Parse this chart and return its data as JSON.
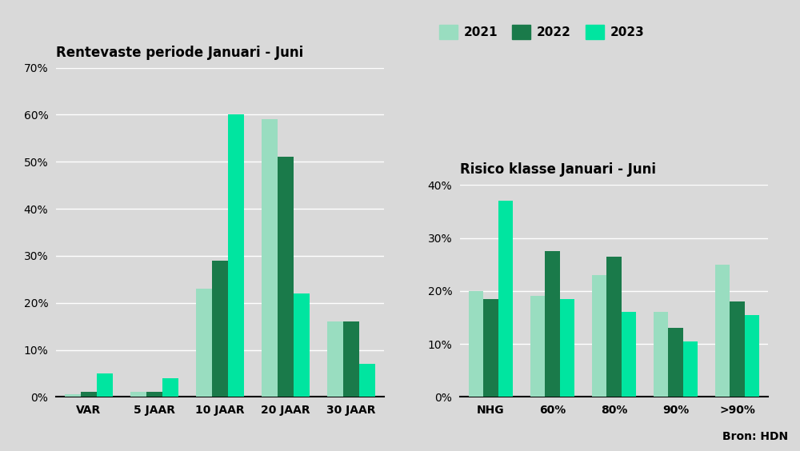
{
  "left_title": "Rentevaste periode Januari - Juni",
  "right_title": "Risico klasse Januari - Juni",
  "legend_labels": [
    "2021",
    "2022",
    "2023"
  ],
  "colors": [
    "#99ddc0",
    "#1a7a4a",
    "#00e5a0"
  ],
  "left_categories": [
    "VAR",
    "5 JAAR",
    "10 JAAR",
    "20 JAAR",
    "30 JAAR"
  ],
  "left_data": {
    "2021": [
      0.005,
      0.01,
      0.23,
      0.59,
      0.16
    ],
    "2022": [
      0.01,
      0.01,
      0.29,
      0.51,
      0.16
    ],
    "2023": [
      0.05,
      0.04,
      0.6,
      0.22,
      0.07
    ]
  },
  "right_categories": [
    "NHG",
    "60%",
    "80%",
    "90%",
    ">90%"
  ],
  "right_data": {
    "2021": [
      0.2,
      0.19,
      0.23,
      0.16,
      0.25
    ],
    "2022": [
      0.185,
      0.275,
      0.265,
      0.13,
      0.18
    ],
    "2023": [
      0.37,
      0.185,
      0.16,
      0.105,
      0.155
    ]
  },
  "left_ylim": [
    0,
    0.7
  ],
  "right_ylim": [
    0,
    0.4
  ],
  "left_yticks": [
    0.0,
    0.1,
    0.2,
    0.3,
    0.4,
    0.5,
    0.6,
    0.7
  ],
  "right_yticks": [
    0.0,
    0.1,
    0.2,
    0.3,
    0.4
  ],
  "background_color": "#d9d9d9",
  "source_text": "Bron: HDN"
}
